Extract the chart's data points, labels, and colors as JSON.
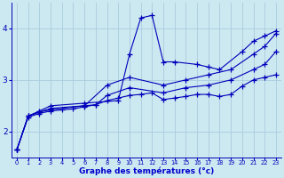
{
  "background_color": "#cce8f0",
  "grid_color": "#aaccdd",
  "line_color": "#0000bb",
  "xlabel": "Graphe des températures (°c)",
  "xlabel_color": "#0000cc",
  "xlim": [
    -0.5,
    23.5
  ],
  "ylim": [
    1.5,
    4.5
  ],
  "yticks": [
    2,
    3,
    4
  ],
  "xticks": [
    0,
    1,
    2,
    3,
    4,
    5,
    6,
    7,
    8,
    9,
    10,
    11,
    12,
    13,
    14,
    15,
    16,
    17,
    18,
    19,
    20,
    21,
    22,
    23
  ],
  "series": [
    {
      "x": [
        0,
        1,
        2,
        3,
        6,
        9,
        10,
        11,
        12,
        13,
        14,
        16,
        17,
        18,
        20,
        21,
        22,
        23
      ],
      "y": [
        1.65,
        2.3,
        2.4,
        2.5,
        2.55,
        2.6,
        3.5,
        4.2,
        4.25,
        3.35,
        3.35,
        3.3,
        3.25,
        3.2,
        3.55,
        3.75,
        3.85,
        3.95
      ]
    },
    {
      "x": [
        0,
        1,
        2,
        3,
        6,
        8,
        10,
        13,
        15,
        17,
        19,
        21,
        22,
        23
      ],
      "y": [
        1.65,
        2.3,
        2.38,
        2.45,
        2.5,
        2.9,
        3.05,
        2.9,
        3.0,
        3.1,
        3.2,
        3.5,
        3.65,
        3.9
      ]
    },
    {
      "x": [
        0,
        1,
        2,
        3,
        6,
        7,
        8,
        10,
        13,
        15,
        17,
        19,
        21,
        22,
        23
      ],
      "y": [
        1.65,
        2.3,
        2.38,
        2.42,
        2.5,
        2.52,
        2.7,
        2.85,
        2.75,
        2.85,
        2.9,
        3.0,
        3.2,
        3.3,
        3.55
      ]
    },
    {
      "x": [
        0,
        1,
        2,
        3,
        4,
        5,
        6,
        7,
        8,
        9,
        10,
        11,
        12,
        13,
        14,
        15,
        16,
        17,
        18,
        19,
        20,
        21,
        22,
        23
      ],
      "y": [
        1.65,
        2.28,
        2.35,
        2.4,
        2.42,
        2.44,
        2.48,
        2.52,
        2.6,
        2.65,
        2.7,
        2.72,
        2.75,
        2.62,
        2.65,
        2.68,
        2.72,
        2.72,
        2.68,
        2.72,
        2.88,
        3.0,
        3.05,
        3.1
      ]
    }
  ]
}
